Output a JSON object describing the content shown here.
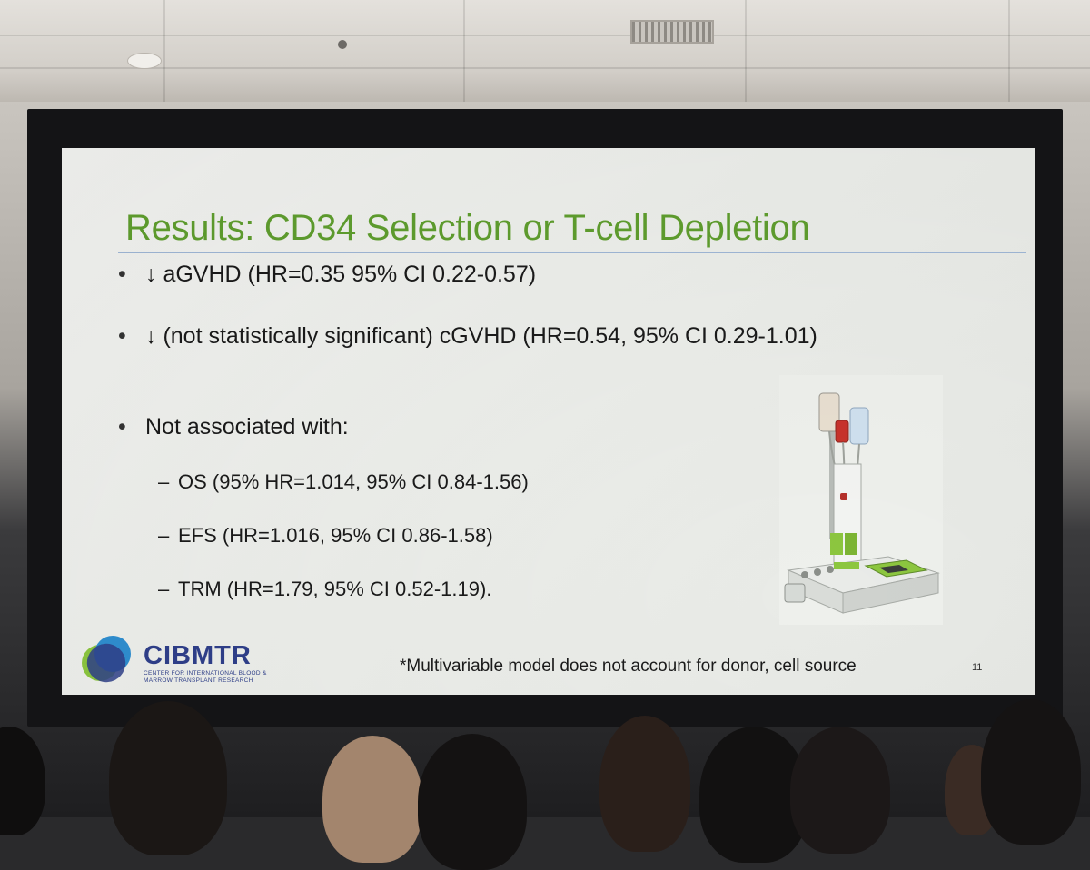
{
  "slide": {
    "title": "Results: CD34 Selection or T-cell Depletion",
    "bullets": [
      {
        "marker": "•",
        "text": "↓ aGVHD (HR=0.35 95% CI 0.22-0.57)"
      },
      {
        "marker": "•",
        "text": "↓ (not statistically significant) cGVHD (HR=0.54, 95% CI 0.29-1.01)"
      },
      {
        "marker": "•",
        "text": "Not associated with:"
      }
    ],
    "sub_bullets": [
      {
        "marker": "–",
        "text": "OS (95% HR=1.014, 95% CI 0.84-1.56)"
      },
      {
        "marker": "–",
        "text": "EFS (HR=1.016, 95% CI 0.86-1.58)"
      },
      {
        "marker": "–",
        "text": "TRM (HR=1.79, 95% CI 0.52-1.19)."
      }
    ],
    "footnote": "*Multivariable model does not account for donor, cell source",
    "page_number": "11",
    "logo": {
      "name": "CIBMTR",
      "subtitle": "CENTER FOR INTERNATIONAL BLOOD & MARROW TRANSPLANT RESEARCH"
    },
    "colors": {
      "title": "#5f9e2e",
      "rule": "#9fb7d6",
      "logo_blue": "#2f3f8a",
      "logo_green": "#8cc63f"
    }
  }
}
